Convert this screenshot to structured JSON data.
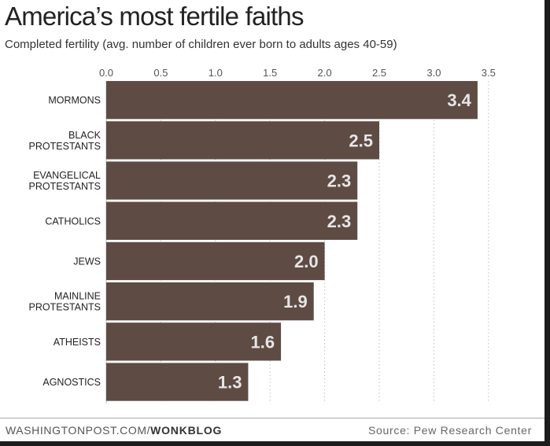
{
  "title": "America’s most fertile faiths",
  "subtitle": "Completed fertility (avg. number of children ever born to adults ages 40-59)",
  "footer": {
    "credit_prefix": "WASHINGTONPOST.COM/",
    "credit_bold": "WONKBLOG",
    "source": "Source: Pew Research Center"
  },
  "colors": {
    "bar": "#5e4b44",
    "value_label": "#e6e6e6",
    "grid": "#bdbdbd"
  },
  "chart_data": {
    "type": "bar",
    "orientation": "horizontal",
    "title": "America’s most fertile faiths",
    "subtitle": "Completed fertility (avg. number of children ever born to adults ages 40-59)",
    "categories": [
      [
        "MORMONS"
      ],
      [
        "BLACK",
        "PROTESTANTS"
      ],
      [
        "EVANGELICAL",
        "PROTESTANTS"
      ],
      [
        "CATHOLICS"
      ],
      [
        "JEWS"
      ],
      [
        "MAINLINE",
        "PROTESTANTS"
      ],
      [
        "ATHEISTS"
      ],
      [
        "AGNOSTICS"
      ]
    ],
    "values": [
      3.4,
      2.5,
      2.3,
      2.3,
      2.0,
      1.9,
      1.6,
      1.3
    ],
    "value_labels": [
      "3.4",
      "2.5",
      "2.3",
      "2.3",
      "2.0",
      "1.9",
      "1.6",
      "1.3"
    ],
    "xlim": [
      0,
      3.5
    ],
    "ticks": [
      0,
      0.5,
      1.0,
      1.5,
      2.0,
      2.5,
      3.0,
      3.5
    ],
    "tick_labels": [
      "0.0",
      "0.5",
      "1.0",
      "1.5",
      "2.0",
      "2.5",
      "3.0",
      "3.5"
    ],
    "grid": "vertical dotted",
    "axis_position": "top",
    "legend": "none"
  }
}
